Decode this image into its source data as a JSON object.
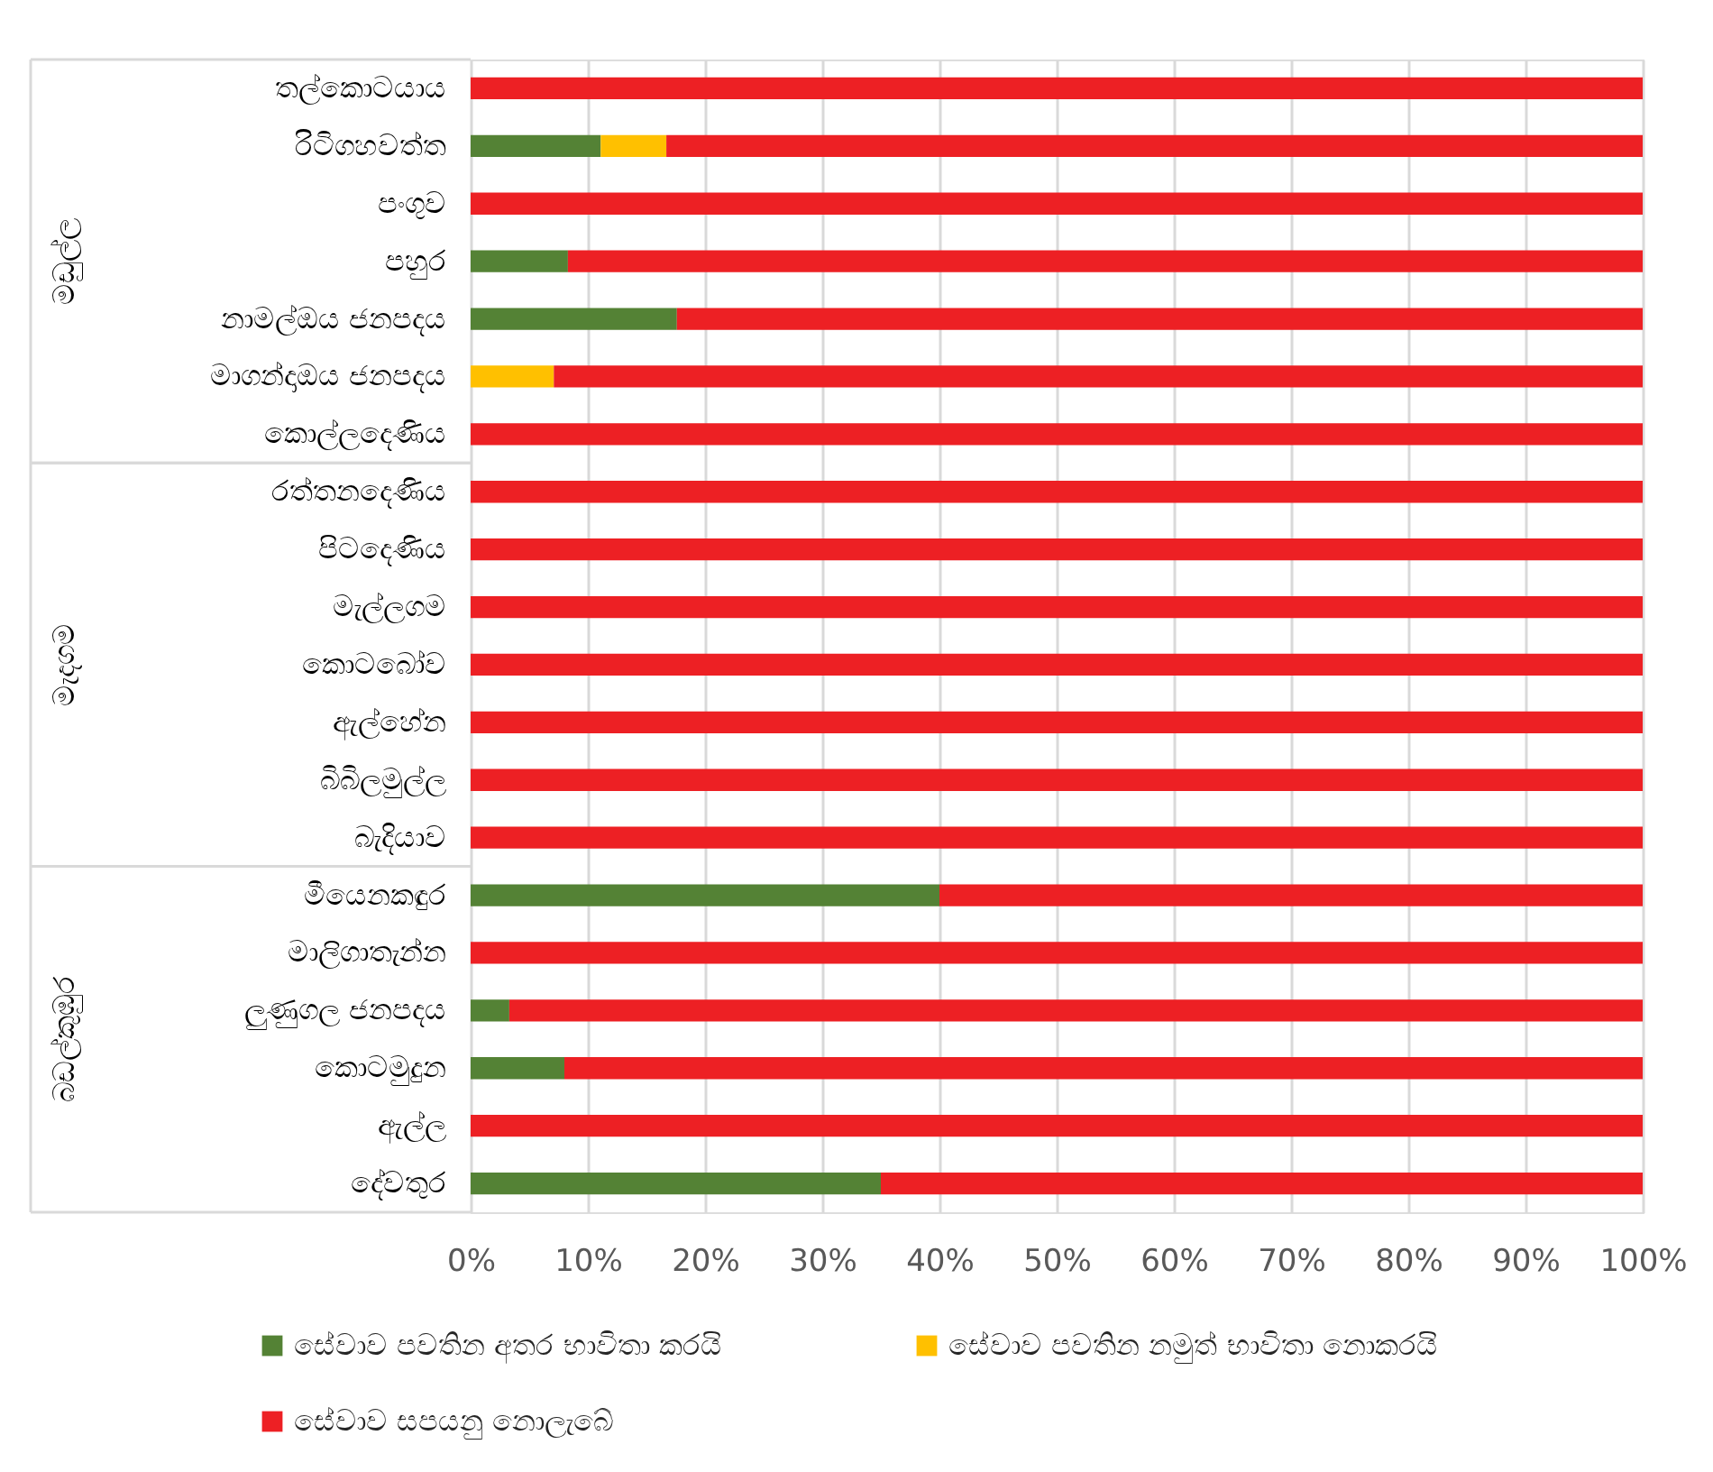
{
  "chart_data": {
    "type": "bar",
    "orientation": "horizontal",
    "stacked": true,
    "categories": [
      "තල්කොටයාය",
      "රිටිගහවත්ත",
      "පංගුව",
      "පහුර",
      "නාමල්ඔය ජනපදය",
      "මාගන්දාඔය ජනපදය",
      "කොල්ලදෙණිය",
      "රත්තනදෙණිය",
      "පිටදෙණිය",
      "මැල්ලගම",
      "කොටබෝව",
      "ඇල්හේන",
      "බිබිලමුල්ල",
      "බැදියාව",
      "මීයෙනකඳුර",
      "මාලිගාතැන්න",
      "ලුණුගල ජනපදය",
      "කොටමුදුන",
      "ඇල්ල",
      "දේවතුර"
    ],
    "series": [
      {
        "name": "සේවාව පවතින අතර භාවිතා කරයි",
        "color": "#548235",
        "values": [
          0,
          11.1,
          0,
          8.3,
          17.6,
          0,
          0,
          0,
          0,
          0,
          0,
          0,
          0,
          0,
          40,
          0,
          3.3,
          8,
          0,
          35
        ]
      },
      {
        "name": "සේවාව පවතින නමුත් භාවිතා නොකරයි",
        "color": "#ffc000",
        "values": [
          0,
          5.6,
          0,
          0,
          0,
          7.1,
          0,
          0,
          0,
          0,
          0,
          0,
          0,
          0,
          0,
          0,
          0,
          0,
          0,
          0
        ]
      },
      {
        "name": "සේවාව සපයනු නොලැබේ",
        "color": "#ed2024",
        "values": [
          100,
          83.3,
          100,
          91.7,
          82.4,
          92.9,
          100,
          100,
          100,
          100,
          100,
          100,
          100,
          100,
          60,
          100,
          96.7,
          92,
          100,
          65
        ]
      }
    ],
    "xlim": [
      0,
      100
    ],
    "xticks": [
      {
        "value": 0,
        "label": "0%"
      },
      {
        "value": 10,
        "label": "10%"
      },
      {
        "value": 20,
        "label": "20%"
      },
      {
        "value": 30,
        "label": "30%"
      },
      {
        "value": 40,
        "label": "40%"
      },
      {
        "value": 50,
        "label": "50%"
      },
      {
        "value": 60,
        "label": "60%"
      },
      {
        "value": 70,
        "label": "70%"
      },
      {
        "value": 80,
        "label": "80%"
      },
      {
        "value": 90,
        "label": "90%"
      },
      {
        "value": 100,
        "label": "100%"
      }
    ],
    "grid": "x",
    "legend": "bottom",
    "annotations": [
      "මඩුල්ල",
      "මැදගම",
      "බඩල්කුඹුර"
    ]
  }
}
